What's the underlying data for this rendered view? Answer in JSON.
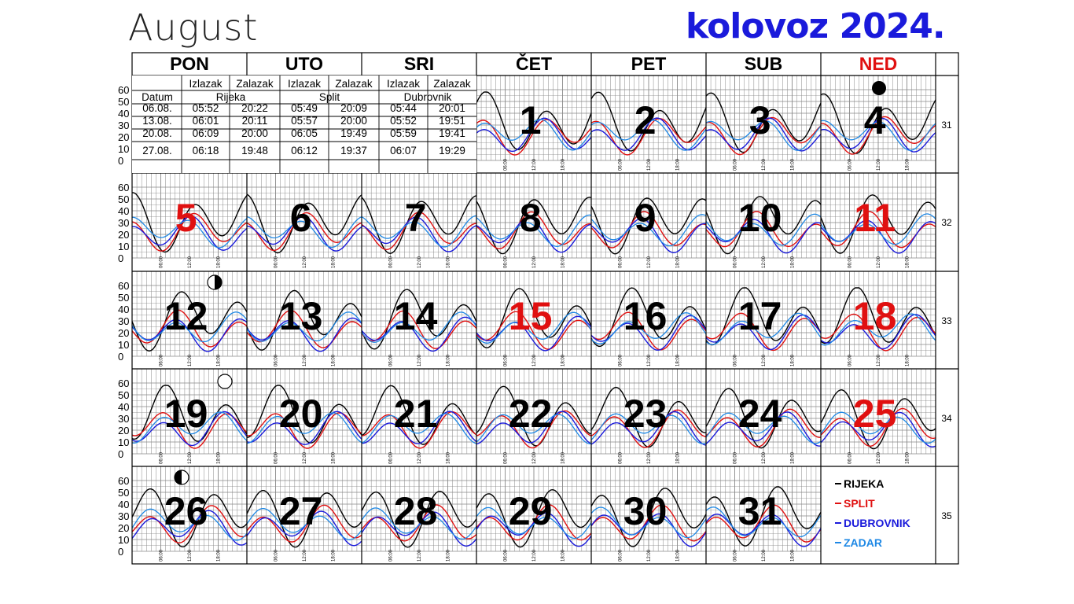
{
  "title_en": "August",
  "title_hr": "kolovoz 2024.",
  "weekdays": [
    "PON",
    "UTO",
    "SRI",
    "ČET",
    "PET",
    "SUB",
    "NED"
  ],
  "colors": {
    "rijeka": "#000000",
    "split": "#e01010",
    "dubrovnik": "#1a1adb",
    "zadar": "#1e88e5",
    "sunday": "#e01010",
    "title": "#1a1adb"
  },
  "weeks": [
    {
      "week": "31",
      "days": [
        "",
        "",
        "",
        "1",
        "2",
        "3",
        "4"
      ]
    },
    {
      "week": "32",
      "days": [
        "5",
        "6",
        "7",
        "8",
        "9",
        "10",
        "11"
      ]
    },
    {
      "week": "33",
      "days": [
        "12",
        "13",
        "14",
        "15",
        "16",
        "17",
        "18"
      ]
    },
    {
      "week": "34",
      "days": [
        "19",
        "20",
        "21",
        "22",
        "23",
        "24",
        "25"
      ]
    },
    {
      "week": "35",
      "days": [
        "26",
        "27",
        "28",
        "29",
        "30",
        "31",
        ""
      ]
    }
  ],
  "red_days": [
    "5",
    "11",
    "15",
    "18",
    "25"
  ],
  "y_axis_labels": [
    "60",
    "50",
    "40",
    "30",
    "20",
    "10",
    "0"
  ],
  "time_ticks": [
    "06:00",
    "12:00",
    "18:00"
  ],
  "sun_table": {
    "headers": [
      "Izlazak",
      "Zalazak",
      "Izlazak",
      "Zalazak",
      "Izlazak",
      "Zalazak"
    ],
    "date_label": "Datum",
    "cities": [
      "Rijeka",
      "Split",
      "Dubrovnik"
    ],
    "rows": [
      [
        "06.08.",
        "05:52",
        "20:22",
        "05:49",
        "20:09",
        "05:44",
        "20:01"
      ],
      [
        "13.08.",
        "06:01",
        "20:11",
        "05:57",
        "20:00",
        "05:52",
        "19:51"
      ],
      [
        "20.08.",
        "06:09",
        "20:00",
        "06:05",
        "19:49",
        "05:59",
        "19:41"
      ],
      [
        "27.08.",
        "06:18",
        "19:48",
        "06:12",
        "19:37",
        "06:07",
        "19:29"
      ]
    ]
  },
  "moon_phases": [
    {
      "day": "4",
      "phase": "new"
    },
    {
      "day": "12",
      "phase": "first-quarter"
    },
    {
      "day": "19",
      "phase": "full"
    },
    {
      "day": "26",
      "phase": "last-quarter"
    }
  ],
  "legend": [
    {
      "label": "RIJEKA",
      "color": "#000000"
    },
    {
      "label": "SPLIT",
      "color": "#e01010"
    },
    {
      "label": "DUBROVNIK",
      "color": "#1a1adb"
    },
    {
      "label": "ZADAR",
      "color": "#1e88e5"
    }
  ]
}
